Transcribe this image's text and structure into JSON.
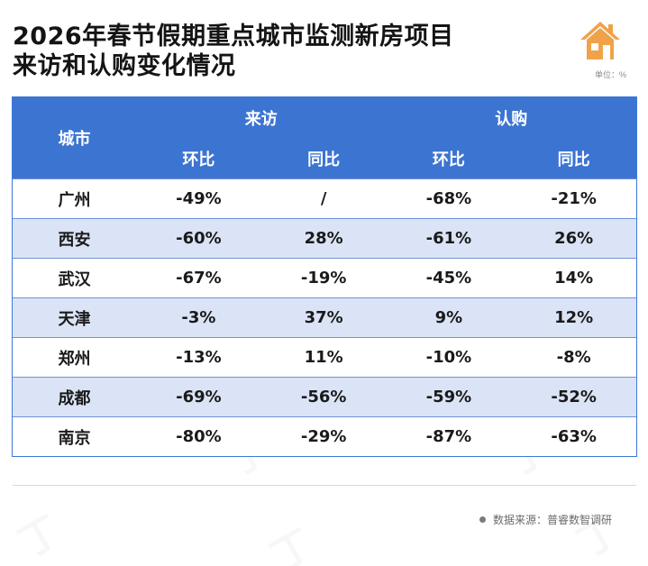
{
  "title_lines": [
    "2026年春节假期重点城市监测新房项目",
    "来访和认购变化情况"
  ],
  "unit": "单位：%",
  "icon": "house-icon",
  "colors": {
    "header_bg": "#3c74d1",
    "stripe_bg": "#dbe4f6",
    "icon_orange": "#f0a24a"
  },
  "table": {
    "city_header": "城市",
    "groups": [
      "来访",
      "认购"
    ],
    "sub_headers": [
      "环比",
      "同比",
      "环比",
      "同比"
    ],
    "rows": [
      [
        "广州",
        "-49%",
        "/",
        "-68%",
        "-21%"
      ],
      [
        "西安",
        "-60%",
        "28%",
        "-61%",
        "26%"
      ],
      [
        "武汉",
        "-67%",
        "-19%",
        "-45%",
        "14%"
      ],
      [
        "天津",
        "-3%",
        "37%",
        "9%",
        "12%"
      ],
      [
        "郑州",
        "-13%",
        "11%",
        "-10%",
        "-8%"
      ],
      [
        "成都",
        "-69%",
        "-56%",
        "-59%",
        "-52%"
      ],
      [
        "南京",
        "-80%",
        "-29%",
        "-87%",
        "-63%"
      ]
    ]
  },
  "source": "数据来源：普睿数智调研"
}
